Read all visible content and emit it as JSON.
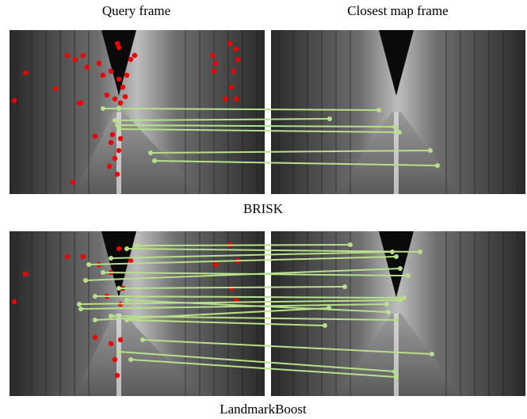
{
  "header": {
    "left": "Query frame",
    "right": "Closest map frame"
  },
  "panels": [
    {
      "caption": "BRISK"
    },
    {
      "caption": "LandmarkBoost"
    }
  ]
}
